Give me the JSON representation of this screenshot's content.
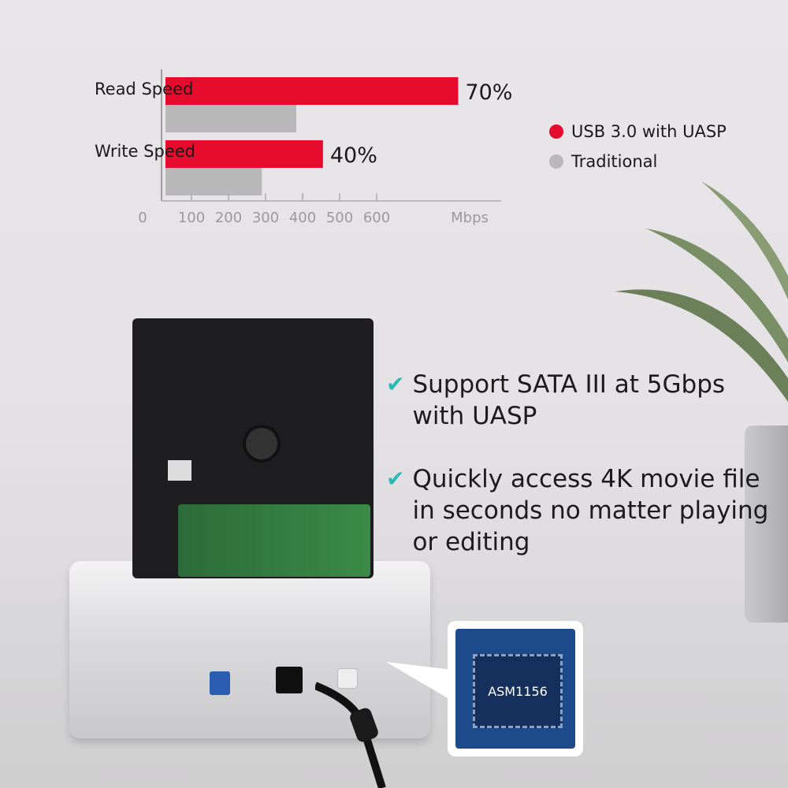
{
  "chart_data": {
    "type": "bar",
    "orientation": "horizontal",
    "categories": [
      "Read Speed",
      "Write Speed"
    ],
    "series": [
      {
        "name": "USB 3.0 with UASP",
        "values": [
          820,
          455
        ],
        "color": "#e60a2d"
      },
      {
        "name": "Traditional",
        "values": [
          383,
          290
        ],
        "color": "#b8b8b8"
      }
    ],
    "data_labels": [
      "70%",
      "40%"
    ],
    "xticks": [
      "0",
      "100",
      "200",
      "300",
      "400",
      "500",
      "600"
    ],
    "xlabel": "Mbps",
    "xlim": [
      0,
      900
    ],
    "grid": false,
    "legend_position": "right"
  },
  "features": [
    "Support SATA III at 5Gbps with UASP",
    "Quickly access 4K movie file in seconds no matter playing or editing"
  ],
  "chip_label": "ASM1156",
  "check_icon": "check-icon"
}
